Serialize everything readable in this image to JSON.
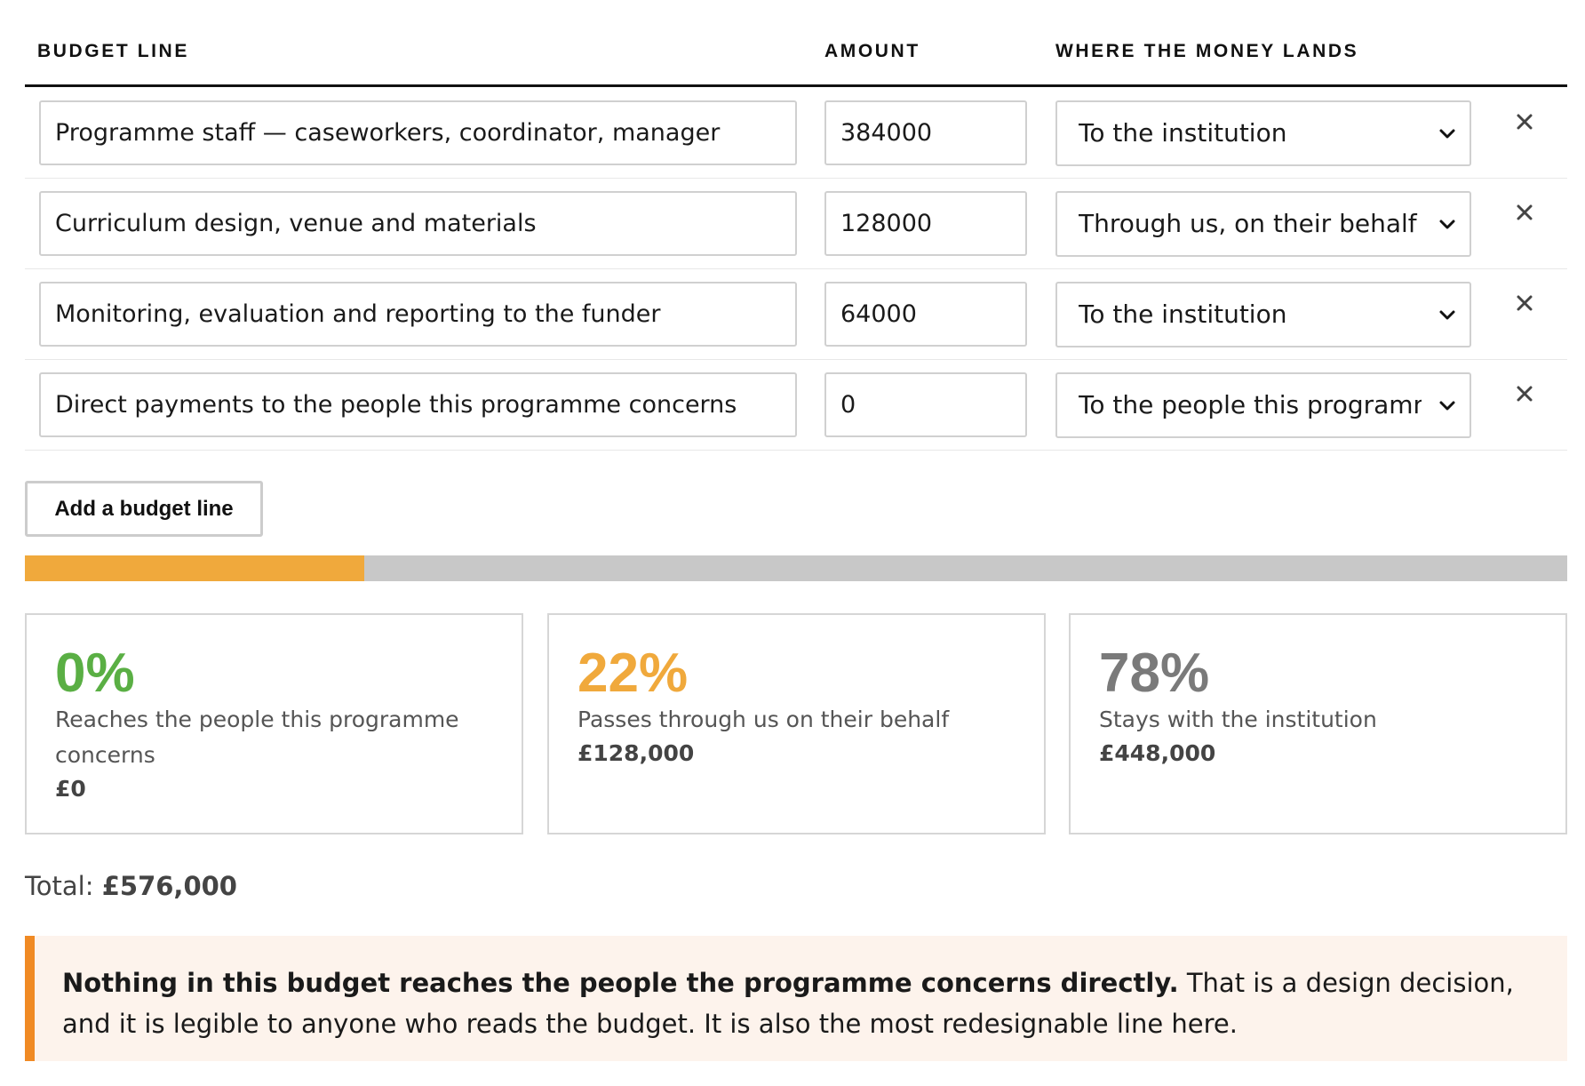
{
  "table": {
    "headers": {
      "budget_line": "BUDGET LINE",
      "amount": "AMOUNT",
      "where": "WHERE THE MONEY LANDS"
    },
    "rows": [
      {
        "description": "Programme staff — caseworkers, coordinator, manager",
        "amount": "384000",
        "destination": "To the institution"
      },
      {
        "description": "Curriculum design, venue and materials",
        "amount": "128000",
        "destination": "Through us, on their behalf"
      },
      {
        "description": "Monitoring, evaluation and reporting to the funder",
        "amount": "64000",
        "destination": "To the institution"
      },
      {
        "description": "Direct payments to the people this programme concerns",
        "amount": "0",
        "destination": "To the people this programme concerns"
      }
    ],
    "remove_symbol": "×"
  },
  "add_button": {
    "label": "Add a budget line"
  },
  "distribution_bar": {
    "people_fraction": 0.0,
    "through_us_fraction": 0.22,
    "institution_fraction": 0.78
  },
  "cards": [
    {
      "percent": "0%",
      "label": "Reaches the people this programme concerns",
      "amount": "£0",
      "color": "#5aaf44"
    },
    {
      "percent": "22%",
      "label": "Passes through us on their behalf",
      "amount": "£128,000",
      "color": "#f0a93c"
    },
    {
      "percent": "78%",
      "label": "Stays with the institution",
      "amount": "£448,000",
      "color": "#7a7a7a"
    }
  ],
  "total": {
    "label": "Total:",
    "value": "£576,000"
  },
  "notice": {
    "bold": "Nothing in this budget reaches the people the programme concerns directly.",
    "text": "That is a design decision, and it is legible to anyone who reads the budget. It is also the most redesignable line here."
  },
  "colors": {
    "accent_orange": "#f08a24",
    "bar_fill": "#f0a93c",
    "bar_track": "#c8c8c8",
    "notice_bg": "#fdf3ec",
    "green": "#5aaf44"
  }
}
